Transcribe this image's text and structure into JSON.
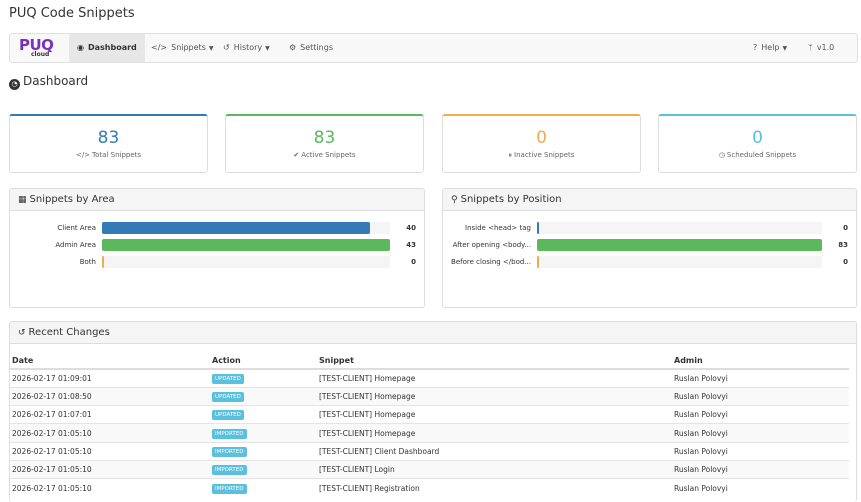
{
  "app_title": "PUQ Code Snippets",
  "logo": {
    "brand": "PUQ",
    "sub": "cloud"
  },
  "nav": {
    "dashboard": "Dashboard",
    "snippets": "Snippets",
    "history": "History",
    "settings": "Settings",
    "help": "Help",
    "version": "v1.0"
  },
  "page_title": "Dashboard",
  "stats": [
    {
      "value": "83",
      "label": "Total Snippets",
      "color": "#337ab7",
      "icon": "code-icon"
    },
    {
      "value": "83",
      "label": "Active Snippets",
      "color": "#5cb85c",
      "icon": "check-circle-icon"
    },
    {
      "value": "0",
      "label": "Inactive Snippets",
      "color": "#f0ad4e",
      "icon": "pause-circle-icon"
    },
    {
      "value": "0",
      "label": "Scheduled Snippets",
      "color": "#5bc0de",
      "icon": "clock-icon"
    }
  ],
  "area_panel": {
    "title": "Snippets by Area",
    "rows": [
      {
        "label": "Client Area",
        "value": 40,
        "color": "#337ab7"
      },
      {
        "label": "Admin Area",
        "value": 43,
        "color": "#5cb85c"
      },
      {
        "label": "Both",
        "value": 0,
        "color": "#f0ad4e"
      }
    ]
  },
  "position_panel": {
    "title": "Snippets by Position",
    "rows": [
      {
        "label": "Inside <head> tag",
        "value": 0,
        "color": "#337ab7"
      },
      {
        "label": "After opening <body...",
        "value": 83,
        "color": "#5cb85c"
      },
      {
        "label": "Before closing </bod...",
        "value": 0,
        "color": "#f0ad4e"
      }
    ]
  },
  "recent": {
    "title": "Recent Changes",
    "columns": [
      "Date",
      "Action",
      "Snippet",
      "Admin"
    ],
    "rows": [
      {
        "date": "2026-02-17 01:09:01",
        "action": "UPDATED",
        "snippet": "[TEST-CLIENT] Homepage",
        "admin": "Ruslan Polovyi"
      },
      {
        "date": "2026-02-17 01:08:50",
        "action": "UPDATED",
        "snippet": "[TEST-CLIENT] Homepage",
        "admin": "Ruslan Polovyi"
      },
      {
        "date": "2026-02-17 01:07:01",
        "action": "UPDATED",
        "snippet": "[TEST-CLIENT] Homepage",
        "admin": "Ruslan Polovyi"
      },
      {
        "date": "2026-02-17 01:05:10",
        "action": "IMPORTED",
        "snippet": "[TEST-CLIENT] Homepage",
        "admin": "Ruslan Polovyi"
      },
      {
        "date": "2026-02-17 01:05:10",
        "action": "IMPORTED",
        "snippet": "[TEST-CLIENT] Client Dashboard",
        "admin": "Ruslan Polovyi"
      },
      {
        "date": "2026-02-17 01:05:10",
        "action": "IMPORTED",
        "snippet": "[TEST-CLIENT] Login",
        "admin": "Ruslan Polovyi"
      },
      {
        "date": "2026-02-17 01:05:10",
        "action": "IMPORTED",
        "snippet": "[TEST-CLIENT] Registration",
        "admin": "Ruslan Polovyi"
      }
    ]
  }
}
